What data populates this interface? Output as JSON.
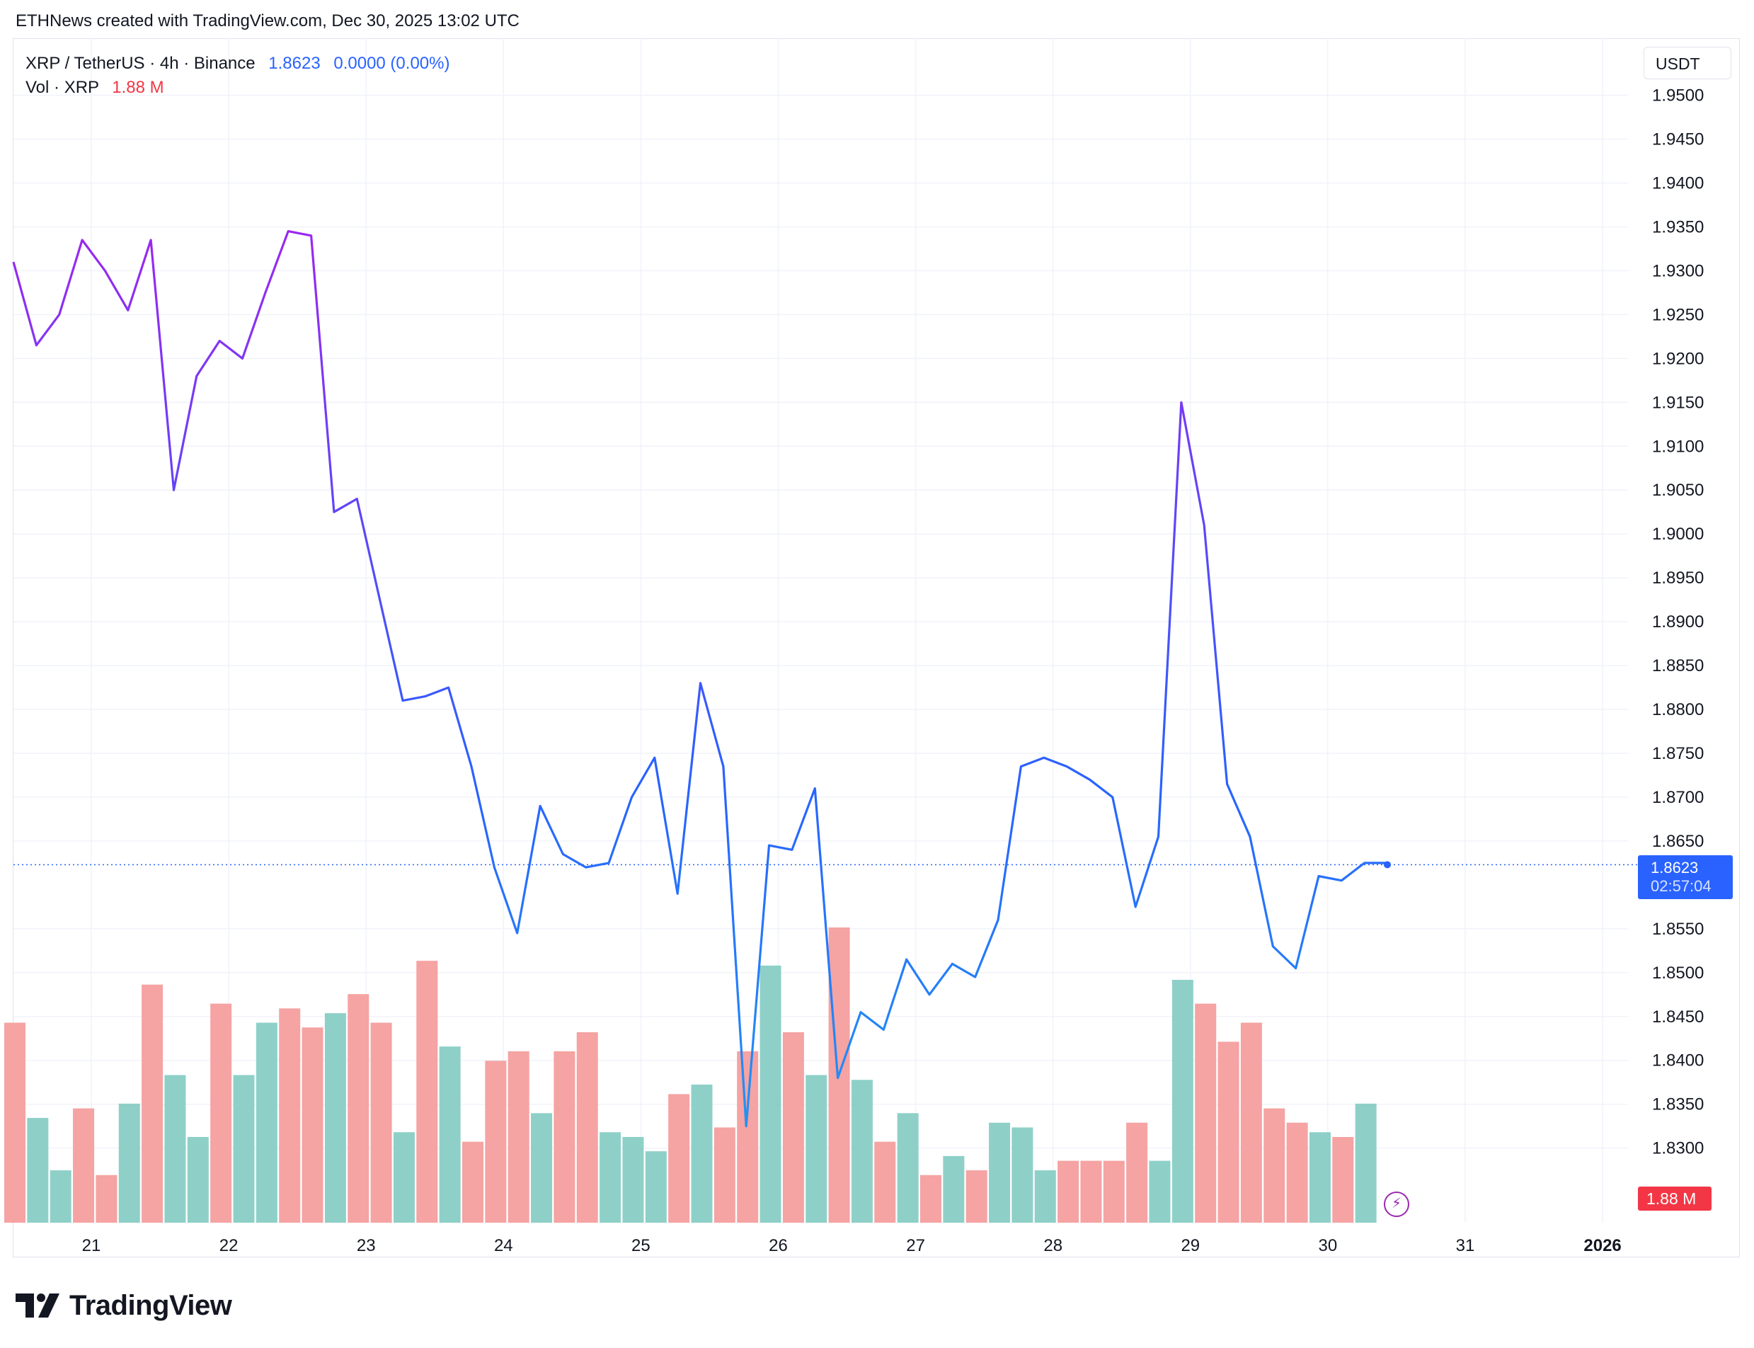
{
  "header": {
    "text": "ETHNews created with TradingView.com, Dec 30, 2025 13:02 UTC"
  },
  "legend": {
    "symbol": "XRP / TetherUS · 4h · Binance",
    "price": "1.8623",
    "change": "0.0000 (0.00%)",
    "volume_label": "Vol · XRP",
    "volume_value": "1.88 M"
  },
  "currency": "USDT",
  "price_tag": {
    "price": "1.8623",
    "countdown": "02:57:04"
  },
  "volume_tag": "1.88 M",
  "brand": "TradingView",
  "colors": {
    "line_upper": "#9c27f0",
    "line_lower": "#2962ff",
    "vol_up": "#8ed0c8",
    "vol_down": "#f5a3a3",
    "price_tag": "#2962ff",
    "vol_tag": "#f23645"
  },
  "chart_data": {
    "type": "line",
    "title": "XRP / TetherUS · 4h · Binance",
    "x_tick_labels": [
      "21",
      "22",
      "23",
      "24",
      "25",
      "26",
      "27",
      "28",
      "29",
      "30",
      "31",
      "2026"
    ],
    "y_tick_labels": [
      "1.9500",
      "1.9450",
      "1.9400",
      "1.9350",
      "1.9300",
      "1.9250",
      "1.9200",
      "1.9150",
      "1.9100",
      "1.9050",
      "1.9000",
      "1.8950",
      "1.8900",
      "1.8850",
      "1.8800",
      "1.8750",
      "1.8700",
      "1.8650",
      "1.8550",
      "1.8500",
      "1.8450",
      "1.8400",
      "1.8350",
      "1.8300"
    ],
    "ylim": [
      1.8215,
      1.9565
    ],
    "grid": true,
    "price": [
      1.931,
      1.9215,
      1.925,
      1.9335,
      1.93,
      1.9255,
      1.9335,
      1.905,
      1.918,
      1.922,
      1.92,
      1.9275,
      1.9345,
      1.934,
      1.9025,
      1.904,
      1.8925,
      1.881,
      1.8815,
      1.8825,
      1.8735,
      1.862,
      1.8545,
      1.869,
      1.8635,
      1.862,
      1.8625,
      1.87,
      1.8745,
      1.859,
      1.883,
      1.8735,
      1.8325,
      1.8645,
      1.864,
      1.871,
      1.838,
      1.8455,
      1.8435,
      1.8515,
      1.8475,
      1.851,
      1.8495,
      1.856,
      1.8735,
      1.8745,
      1.8735,
      1.872,
      1.87,
      1.8575,
      1.8655,
      1.915,
      1.901,
      1.8715,
      1.8655,
      1.853,
      1.8505,
      1.861,
      1.8605,
      1.8625,
      1.8625
    ],
    "volume": [
      {
        "v": 0.42,
        "dir": "down"
      },
      {
        "v": 0.22,
        "dir": "up"
      },
      {
        "v": 0.11,
        "dir": "up"
      },
      {
        "v": 0.24,
        "dir": "down"
      },
      {
        "v": 0.1,
        "dir": "down"
      },
      {
        "v": 0.25,
        "dir": "up"
      },
      {
        "v": 0.5,
        "dir": "down"
      },
      {
        "v": 0.31,
        "dir": "up"
      },
      {
        "v": 0.18,
        "dir": "up"
      },
      {
        "v": 0.46,
        "dir": "down"
      },
      {
        "v": 0.31,
        "dir": "up"
      },
      {
        "v": 0.42,
        "dir": "up"
      },
      {
        "v": 0.45,
        "dir": "down"
      },
      {
        "v": 0.41,
        "dir": "down"
      },
      {
        "v": 0.44,
        "dir": "up"
      },
      {
        "v": 0.48,
        "dir": "down"
      },
      {
        "v": 0.42,
        "dir": "down"
      },
      {
        "v": 0.19,
        "dir": "up"
      },
      {
        "v": 0.55,
        "dir": "down"
      },
      {
        "v": 0.37,
        "dir": "up"
      },
      {
        "v": 0.17,
        "dir": "down"
      },
      {
        "v": 0.34,
        "dir": "down"
      },
      {
        "v": 0.36,
        "dir": "down"
      },
      {
        "v": 0.23,
        "dir": "up"
      },
      {
        "v": 0.36,
        "dir": "down"
      },
      {
        "v": 0.4,
        "dir": "down"
      },
      {
        "v": 0.19,
        "dir": "up"
      },
      {
        "v": 0.18,
        "dir": "up"
      },
      {
        "v": 0.15,
        "dir": "up"
      },
      {
        "v": 0.27,
        "dir": "down"
      },
      {
        "v": 0.29,
        "dir": "up"
      },
      {
        "v": 0.2,
        "dir": "down"
      },
      {
        "v": 0.36,
        "dir": "down"
      },
      {
        "v": 0.54,
        "dir": "up"
      },
      {
        "v": 0.4,
        "dir": "down"
      },
      {
        "v": 0.31,
        "dir": "up"
      },
      {
        "v": 0.62,
        "dir": "down"
      },
      {
        "v": 0.3,
        "dir": "up"
      },
      {
        "v": 0.17,
        "dir": "down"
      },
      {
        "v": 0.23,
        "dir": "up"
      },
      {
        "v": 0.1,
        "dir": "down"
      },
      {
        "v": 0.14,
        "dir": "up"
      },
      {
        "v": 0.11,
        "dir": "down"
      },
      {
        "v": 0.21,
        "dir": "up"
      },
      {
        "v": 0.2,
        "dir": "up"
      },
      {
        "v": 0.11,
        "dir": "up"
      },
      {
        "v": 0.13,
        "dir": "down"
      },
      {
        "v": 0.13,
        "dir": "down"
      },
      {
        "v": 0.13,
        "dir": "down"
      },
      {
        "v": 0.21,
        "dir": "down"
      },
      {
        "v": 0.13,
        "dir": "up"
      },
      {
        "v": 0.51,
        "dir": "up"
      },
      {
        "v": 0.46,
        "dir": "down"
      },
      {
        "v": 0.38,
        "dir": "down"
      },
      {
        "v": 0.42,
        "dir": "down"
      },
      {
        "v": 0.24,
        "dir": "down"
      },
      {
        "v": 0.21,
        "dir": "down"
      },
      {
        "v": 0.19,
        "dir": "up"
      },
      {
        "v": 0.18,
        "dir": "down"
      },
      {
        "v": 0.25,
        "dir": "up"
      }
    ],
    "last_price": 1.8623
  }
}
